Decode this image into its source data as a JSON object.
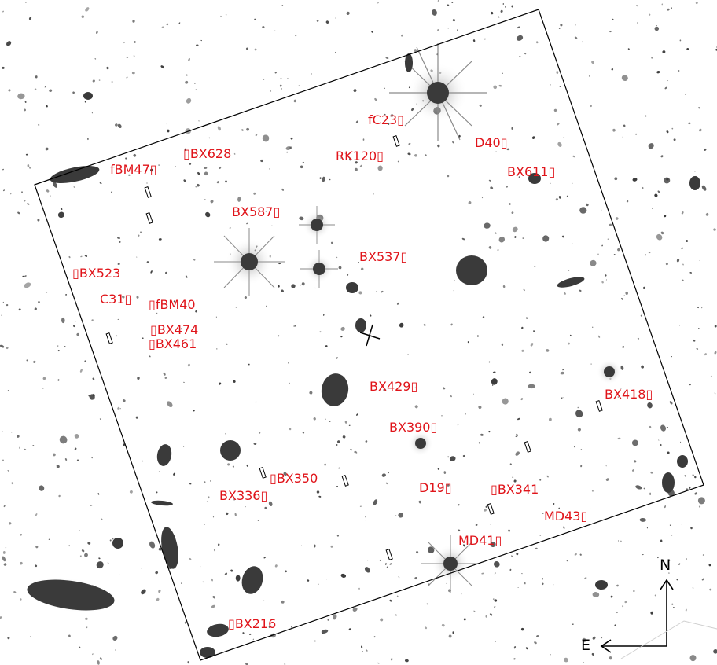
{
  "image": {
    "description_kind": "deep-field galaxy image with multi-slit mask overlay",
    "colors": {
      "label": "#e0141a",
      "outline": "#000000",
      "source": "#3a3a3a",
      "background": "#ffffff"
    }
  },
  "labels": {
    "fC23": "fC23",
    "D40": "D40",
    "BX628": "BX628",
    "fBM47": "fBM47",
    "RK120": "RK120",
    "BX611": "BX611",
    "BX587": "BX587",
    "BX537": "BX537",
    "BX523": "BX523",
    "C31": "C31",
    "fBM40": "fBM40",
    "BX474": "BX474",
    "BX461": "BX461",
    "BX429": "BX429",
    "BX418": "BX418",
    "BX390": "BX390",
    "BX350": "BX350",
    "BX336": "BX336",
    "D19": "D19",
    "BX341": "BX341",
    "MD43": "MD43",
    "MD41": "MD41",
    "BX216": "BX216"
  },
  "compass": {
    "north": "N",
    "east": "E"
  }
}
